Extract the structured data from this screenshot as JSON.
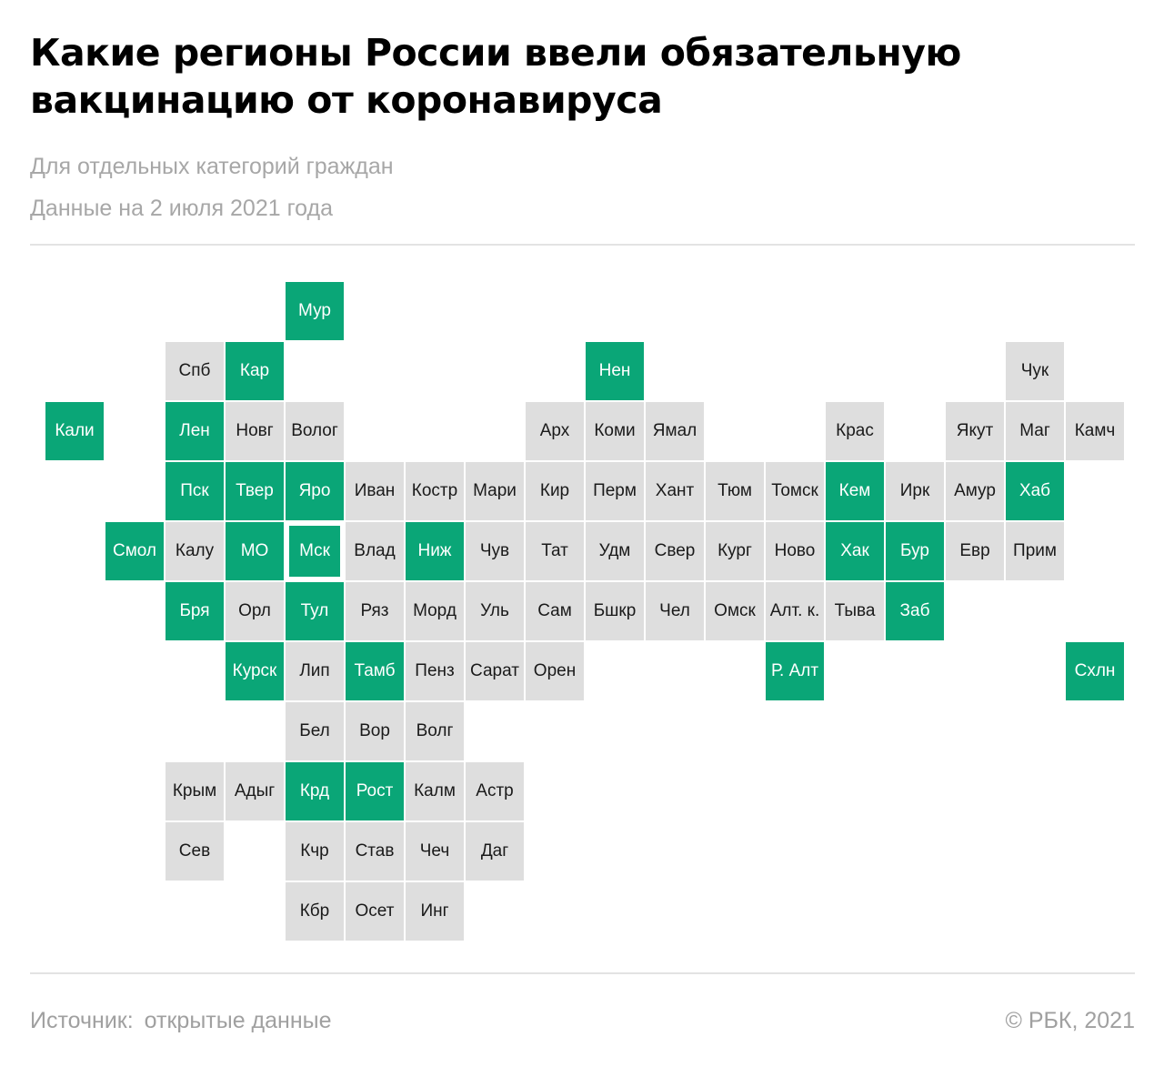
{
  "header": {
    "title": "Какие регионы России ввели обязательную вакцинацию от коронавируса",
    "subtitle": "Для отдельных категорий граждан",
    "date_note": "Данные на 2 июля 2021 года"
  },
  "colors": {
    "mandatory": "#0aa677",
    "other": "#dedede"
  },
  "footer": {
    "source_label": "Источник:",
    "source_value": "открытые данные",
    "copyright": "©  РБК, 2021"
  },
  "tiles": [
    {
      "label": "Мур",
      "col": 4,
      "row": 0,
      "mandatory": true
    },
    {
      "label": "Спб",
      "col": 2,
      "row": 1,
      "mandatory": false
    },
    {
      "label": "Кар",
      "col": 3,
      "row": 1,
      "mandatory": true
    },
    {
      "label": "Нен",
      "col": 9,
      "row": 1,
      "mandatory": true
    },
    {
      "label": "Чук",
      "col": 16,
      "row": 1,
      "mandatory": false
    },
    {
      "label": "Кали",
      "col": 0,
      "row": 2,
      "mandatory": true
    },
    {
      "label": "Лен",
      "col": 2,
      "row": 2,
      "mandatory": true
    },
    {
      "label": "Новг",
      "col": 3,
      "row": 2,
      "mandatory": false
    },
    {
      "label": "Волог",
      "col": 4,
      "row": 2,
      "mandatory": false
    },
    {
      "label": "Арх",
      "col": 8,
      "row": 2,
      "mandatory": false
    },
    {
      "label": "Коми",
      "col": 9,
      "row": 2,
      "mandatory": false
    },
    {
      "label": "Ямал",
      "col": 10,
      "row": 2,
      "mandatory": false
    },
    {
      "label": "Крас",
      "col": 13,
      "row": 2,
      "mandatory": false
    },
    {
      "label": "Якут",
      "col": 15,
      "row": 2,
      "mandatory": false
    },
    {
      "label": "Маг",
      "col": 16,
      "row": 2,
      "mandatory": false
    },
    {
      "label": "Камч",
      "col": 17,
      "row": 2,
      "mandatory": false
    },
    {
      "label": "Пск",
      "col": 2,
      "row": 3,
      "mandatory": true
    },
    {
      "label": "Твер",
      "col": 3,
      "row": 3,
      "mandatory": true
    },
    {
      "label": "Яро",
      "col": 4,
      "row": 3,
      "mandatory": true
    },
    {
      "label": "Иван",
      "col": 5,
      "row": 3,
      "mandatory": false
    },
    {
      "label": "Костр",
      "col": 6,
      "row": 3,
      "mandatory": false
    },
    {
      "label": "Мари",
      "col": 7,
      "row": 3,
      "mandatory": false
    },
    {
      "label": "Кир",
      "col": 8,
      "row": 3,
      "mandatory": false
    },
    {
      "label": "Перм",
      "col": 9,
      "row": 3,
      "mandatory": false
    },
    {
      "label": "Хант",
      "col": 10,
      "row": 3,
      "mandatory": false
    },
    {
      "label": "Тюм",
      "col": 11,
      "row": 3,
      "mandatory": false
    },
    {
      "label": "Томск",
      "col": 12,
      "row": 3,
      "mandatory": false
    },
    {
      "label": "Кем",
      "col": 13,
      "row": 3,
      "mandatory": true
    },
    {
      "label": "Ирк",
      "col": 14,
      "row": 3,
      "mandatory": false
    },
    {
      "label": "Амур",
      "col": 15,
      "row": 3,
      "mandatory": false
    },
    {
      "label": "Хаб",
      "col": 16,
      "row": 3,
      "mandatory": true
    },
    {
      "label": "Смол",
      "col": 1,
      "row": 4,
      "mandatory": true
    },
    {
      "label": "Калу",
      "col": 2,
      "row": 4,
      "mandatory": false
    },
    {
      "label": "МО",
      "col": 3,
      "row": 4,
      "mandatory": true
    },
    {
      "label": "Мск",
      "col": 4,
      "row": 4,
      "mandatory": true,
      "capital": true
    },
    {
      "label": "Влад",
      "col": 5,
      "row": 4,
      "mandatory": false
    },
    {
      "label": "Ниж",
      "col": 6,
      "row": 4,
      "mandatory": true
    },
    {
      "label": "Чув",
      "col": 7,
      "row": 4,
      "mandatory": false
    },
    {
      "label": "Тат",
      "col": 8,
      "row": 4,
      "mandatory": false
    },
    {
      "label": "Удм",
      "col": 9,
      "row": 4,
      "mandatory": false
    },
    {
      "label": "Свер",
      "col": 10,
      "row": 4,
      "mandatory": false
    },
    {
      "label": "Кург",
      "col": 11,
      "row": 4,
      "mandatory": false
    },
    {
      "label": "Ново",
      "col": 12,
      "row": 4,
      "mandatory": false
    },
    {
      "label": "Хак",
      "col": 13,
      "row": 4,
      "mandatory": true
    },
    {
      "label": "Бур",
      "col": 14,
      "row": 4,
      "mandatory": true
    },
    {
      "label": "Евр",
      "col": 15,
      "row": 4,
      "mandatory": false
    },
    {
      "label": "Прим",
      "col": 16,
      "row": 4,
      "mandatory": false
    },
    {
      "label": "Бря",
      "col": 2,
      "row": 5,
      "mandatory": true
    },
    {
      "label": "Орл",
      "col": 3,
      "row": 5,
      "mandatory": false
    },
    {
      "label": "Тул",
      "col": 4,
      "row": 5,
      "mandatory": true
    },
    {
      "label": "Ряз",
      "col": 5,
      "row": 5,
      "mandatory": false
    },
    {
      "label": "Морд",
      "col": 6,
      "row": 5,
      "mandatory": false
    },
    {
      "label": "Уль",
      "col": 7,
      "row": 5,
      "mandatory": false
    },
    {
      "label": "Сам",
      "col": 8,
      "row": 5,
      "mandatory": false
    },
    {
      "label": "Бшкр",
      "col": 9,
      "row": 5,
      "mandatory": false
    },
    {
      "label": "Чел",
      "col": 10,
      "row": 5,
      "mandatory": false
    },
    {
      "label": "Омск",
      "col": 11,
      "row": 5,
      "mandatory": false
    },
    {
      "label": "Алт. к.",
      "col": 12,
      "row": 5,
      "mandatory": false
    },
    {
      "label": "Тыва",
      "col": 13,
      "row": 5,
      "mandatory": false
    },
    {
      "label": "Заб",
      "col": 14,
      "row": 5,
      "mandatory": true
    },
    {
      "label": "Курск",
      "col": 3,
      "row": 6,
      "mandatory": true
    },
    {
      "label": "Лип",
      "col": 4,
      "row": 6,
      "mandatory": false
    },
    {
      "label": "Тамб",
      "col": 5,
      "row": 6,
      "mandatory": true
    },
    {
      "label": "Пенз",
      "col": 6,
      "row": 6,
      "mandatory": false
    },
    {
      "label": "Сарат",
      "col": 7,
      "row": 6,
      "mandatory": false
    },
    {
      "label": "Орен",
      "col": 8,
      "row": 6,
      "mandatory": false
    },
    {
      "label": "Р. Алт",
      "col": 12,
      "row": 6,
      "mandatory": true
    },
    {
      "label": "Схлн",
      "col": 17,
      "row": 6,
      "mandatory": true
    },
    {
      "label": "Бел",
      "col": 4,
      "row": 7,
      "mandatory": false
    },
    {
      "label": "Вор",
      "col": 5,
      "row": 7,
      "mandatory": false
    },
    {
      "label": "Волг",
      "col": 6,
      "row": 7,
      "mandatory": false
    },
    {
      "label": "Крым",
      "col": 2,
      "row": 8,
      "mandatory": false
    },
    {
      "label": "Адыг",
      "col": 3,
      "row": 8,
      "mandatory": false
    },
    {
      "label": "Крд",
      "col": 4,
      "row": 8,
      "mandatory": true
    },
    {
      "label": "Рост",
      "col": 5,
      "row": 8,
      "mandatory": true
    },
    {
      "label": "Калм",
      "col": 6,
      "row": 8,
      "mandatory": false
    },
    {
      "label": "Астр",
      "col": 7,
      "row": 8,
      "mandatory": false
    },
    {
      "label": "Сев",
      "col": 2,
      "row": 9,
      "mandatory": false
    },
    {
      "label": "Кчр",
      "col": 4,
      "row": 9,
      "mandatory": false
    },
    {
      "label": "Став",
      "col": 5,
      "row": 9,
      "mandatory": false
    },
    {
      "label": "Чеч",
      "col": 6,
      "row": 9,
      "mandatory": false
    },
    {
      "label": "Даг",
      "col": 7,
      "row": 9,
      "mandatory": false
    },
    {
      "label": "Кбр",
      "col": 4,
      "row": 10,
      "mandatory": false
    },
    {
      "label": "Осет",
      "col": 5,
      "row": 10,
      "mandatory": false
    },
    {
      "label": "Инг",
      "col": 6,
      "row": 10,
      "mandatory": false
    }
  ]
}
